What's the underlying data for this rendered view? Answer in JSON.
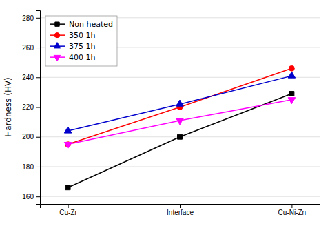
{
  "chart_data": {
    "type": "line",
    "categories": [
      "Cu-Zr",
      "Interface",
      "Cu-Ni-Zn"
    ],
    "series": [
      {
        "name": "Non heated",
        "color": "#000000",
        "marker": "square",
        "values": [
          166,
          200,
          229
        ]
      },
      {
        "name": "350 1h",
        "color": "#ff0000",
        "marker": "circle",
        "values": [
          195,
          220,
          246
        ]
      },
      {
        "name": "375 1h",
        "color": "#0000cc",
        "marker": "triangle-up",
        "values": [
          204,
          222,
          241
        ]
      },
      {
        "name": "400 1h",
        "color": "#ff00ff",
        "marker": "triangle-down",
        "values": [
          195,
          211,
          225
        ]
      }
    ],
    "ylabel": "Hardness (HV)",
    "ylim": [
      155,
      285
    ],
    "yticks": [
      160,
      180,
      200,
      220,
      240,
      260,
      280
    ],
    "grid": true,
    "legend": "upper left"
  }
}
